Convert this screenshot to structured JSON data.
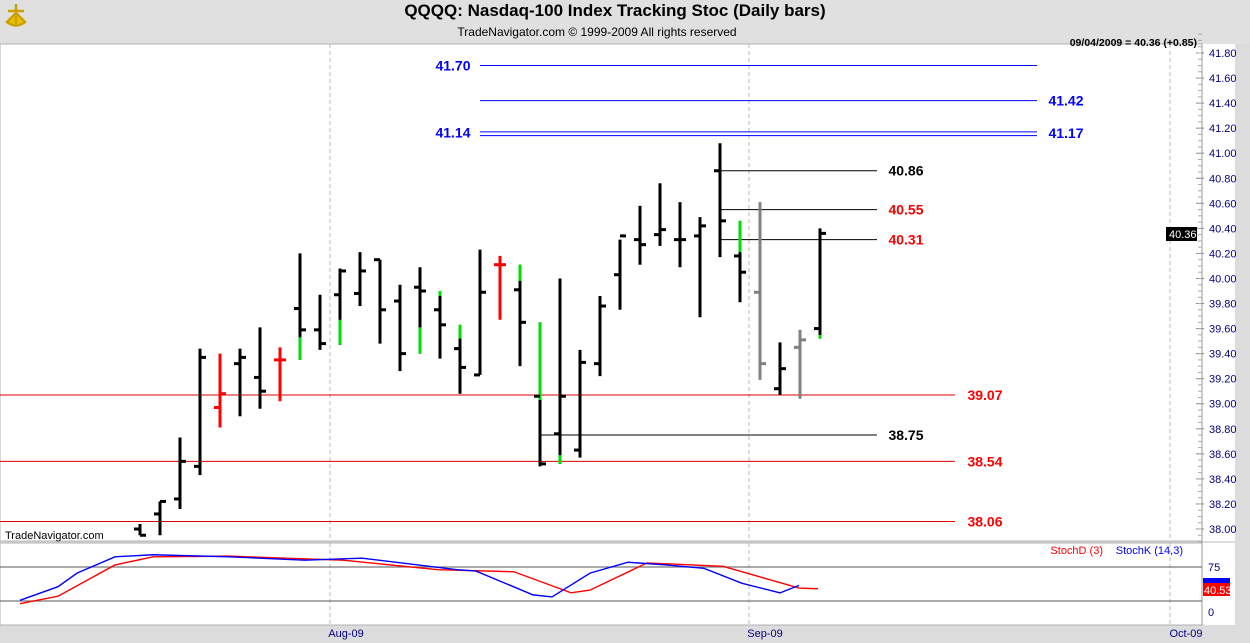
{
  "header": {
    "title": "QQQQ:  Nasdaq-100 Index Tracking Stoc  (Daily bars)",
    "subtitle": "TradeNavigator.com © 1999-2009 All rights reserved",
    "logo": "sextant-logo"
  },
  "watermark": "TradeNavigator.com",
  "readout": "09/04/2009 = 40.36 (+0.85)",
  "last_price_tag": "40.36",
  "colors": {
    "up": "#000000",
    "down_red": "#ff0000",
    "gray": "#808080",
    "green": "#00dd00",
    "blue_level": "#0000ff",
    "stochK": "#0000ff",
    "stochD": "#ff0000"
  },
  "chart_data": [
    {
      "type": "ohlc",
      "title": "QQQQ:  Nasdaq-100 Index Tracking Stoc  (Daily bars)",
      "ylim": [
        37.9,
        41.95
      ],
      "yticks": [
        "38.00",
        "38.20",
        "38.40",
        "38.60",
        "38.80",
        "39.00",
        "39.20",
        "39.40",
        "39.60",
        "39.80",
        "40.00",
        "40.20",
        "40.40",
        "40.60",
        "40.80",
        "41.00",
        "41.20",
        "41.40",
        "41.60",
        "41.80"
      ],
      "xticks": [
        "Aug-09",
        "Sep-09",
        "Oct-09"
      ],
      "grid": "vertical dashed at month starts",
      "bars": [
        {
          "o": 38.0,
          "h": 38.04,
          "l": 37.95,
          "c": 37.95
        },
        {
          "o": 38.12,
          "h": 38.22,
          "l": 37.95,
          "c": 38.22
        },
        {
          "o": 38.24,
          "h": 38.73,
          "l": 38.16,
          "c": 38.54
        },
        {
          "o": 38.5,
          "h": 39.44,
          "l": 38.43,
          "c": 39.37
        },
        {
          "o": 38.97,
          "h": 39.4,
          "l": 38.81,
          "c": 39.08,
          "color": "red"
        },
        {
          "o": 39.32,
          "h": 39.44,
          "l": 38.9,
          "c": 39.37
        },
        {
          "o": 39.21,
          "h": 39.61,
          "l": 38.96,
          "c": 39.1
        },
        {
          "o": 39.35,
          "h": 39.45,
          "l": 39.02,
          "c": 39.35,
          "color": "red"
        },
        {
          "o": 39.76,
          "h": 40.2,
          "l": 39.35,
          "c": 39.59,
          "green": [
            39.53,
            39.35
          ]
        },
        {
          "o": 39.59,
          "h": 39.87,
          "l": 39.43,
          "c": 39.48
        },
        {
          "o": 39.87,
          "h": 40.08,
          "l": 39.47,
          "c": 40.06,
          "green": [
            39.67,
            39.47
          ]
        },
        {
          "o": 39.88,
          "h": 40.21,
          "l": 39.78,
          "c": 40.06
        },
        {
          "o": 40.15,
          "h": 40.15,
          "l": 39.48,
          "c": 39.75
        },
        {
          "o": 39.82,
          "h": 39.95,
          "l": 39.26,
          "c": 39.4
        },
        {
          "o": 39.93,
          "h": 40.09,
          "l": 39.4,
          "c": 39.9,
          "green": [
            39.61,
            39.4
          ]
        },
        {
          "o": 39.75,
          "h": 39.9,
          "l": 39.36,
          "c": 39.63,
          "green": [
            39.9,
            39.86
          ]
        },
        {
          "o": 39.44,
          "h": 39.63,
          "l": 39.08,
          "c": 39.29,
          "green": [
            39.63,
            39.52
          ]
        },
        {
          "o": 39.23,
          "h": 40.23,
          "l": 39.23,
          "c": 39.89
        },
        {
          "o": 40.11,
          "h": 40.18,
          "l": 39.67,
          "c": 40.11,
          "color": "red"
        },
        {
          "o": 39.91,
          "h": 40.11,
          "l": 39.3,
          "c": 39.65,
          "green": [
            40.11,
            39.98
          ]
        },
        {
          "o": 39.06,
          "h": 39.65,
          "l": 38.5,
          "c": 38.52,
          "green": [
            39.65,
            39.03
          ]
        },
        {
          "o": 38.76,
          "h": 40.0,
          "l": 38.52,
          "c": 39.06,
          "green": [
            38.59,
            38.52
          ]
        },
        {
          "o": 38.63,
          "h": 39.43,
          "l": 38.57,
          "c": 39.33
        },
        {
          "o": 39.32,
          "h": 39.86,
          "l": 39.22,
          "c": 39.78
        },
        {
          "o": 40.03,
          "h": 40.31,
          "l": 39.75,
          "c": 40.34
        },
        {
          "o": 40.31,
          "h": 40.58,
          "l": 40.11,
          "c": 40.27
        },
        {
          "o": 40.35,
          "h": 40.76,
          "l": 40.26,
          "c": 40.39
        },
        {
          "o": 40.31,
          "h": 40.61,
          "l": 40.09,
          "c": 40.31
        },
        {
          "o": 40.34,
          "h": 40.49,
          "l": 39.69,
          "c": 40.42
        },
        {
          "o": 40.86,
          "h": 41.08,
          "l": 40.17,
          "c": 40.46
        },
        {
          "o": 40.18,
          "h": 40.46,
          "l": 39.81,
          "c": 40.05,
          "green": [
            40.46,
            40.21
          ]
        },
        {
          "o": 39.89,
          "h": 40.61,
          "l": 39.19,
          "c": 39.32,
          "color": "gray"
        },
        {
          "o": 39.12,
          "h": 39.49,
          "l": 39.07,
          "c": 39.28
        },
        {
          "o": 39.45,
          "h": 39.59,
          "l": 39.04,
          "c": 39.51,
          "color": "gray"
        },
        {
          "o": 39.6,
          "h": 40.4,
          "l": 39.52,
          "c": 40.36,
          "green": [
            39.55,
            39.52
          ]
        }
      ],
      "levels": [
        {
          "value": 41.7,
          "label": "41.70",
          "color": "blue",
          "label_side": "left"
        },
        {
          "value": 41.42,
          "label": "41.42",
          "color": "blue",
          "label_side": "right"
        },
        {
          "value": 41.17,
          "label": "41.17",
          "color": "blue",
          "label_side": "right"
        },
        {
          "value": 41.14,
          "label": "41.14",
          "color": "blue",
          "label_side": "left"
        },
        {
          "value": 40.86,
          "label": "40.86",
          "color": "black",
          "label_side": "right"
        },
        {
          "value": 40.55,
          "label": "40.55",
          "color": "red",
          "label_side": "right"
        },
        {
          "value": 40.31,
          "label": "40.31",
          "color": "red",
          "label_side": "right"
        },
        {
          "value": 39.07,
          "label": "39.07",
          "color": "red",
          "label_side": "right"
        },
        {
          "value": 38.75,
          "label": "38.75",
          "color": "black",
          "label_side": "right"
        },
        {
          "value": 38.54,
          "label": "38.54",
          "color": "red",
          "label_side": "right"
        },
        {
          "value": 38.06,
          "label": "38.06",
          "color": "red",
          "label_side": "right"
        }
      ]
    },
    {
      "type": "line",
      "ylim": [
        0,
        100
      ],
      "yticks": [
        "75",
        "0"
      ],
      "reference_lines": [
        75,
        25
      ],
      "legend": "top-right",
      "last_value_tag": "40.53",
      "series": [
        {
          "name": "StochD (3)",
          "color": "#ff0000",
          "points": [
            [
              1,
              21
            ],
            [
              3,
              32
            ],
            [
              6,
              78
            ],
            [
              8,
              90
            ],
            [
              12,
              91
            ],
            [
              18,
              85
            ],
            [
              23,
              71
            ],
            [
              27,
              68
            ],
            [
              30,
              37
            ],
            [
              31,
              41
            ],
            [
              34,
              81
            ],
            [
              38,
              76
            ],
            [
              42,
              44
            ],
            [
              43,
              43
            ]
          ]
        },
        {
          "name": "StochK (14,3)",
          "color": "#0000ff",
          "points": [
            [
              1,
              26
            ],
            [
              3,
              46
            ],
            [
              4,
              66
            ],
            [
              6,
              90
            ],
            [
              8,
              93
            ],
            [
              12,
              90
            ],
            [
              16,
              85
            ],
            [
              18,
              87
            ],
            [
              19,
              88
            ],
            [
              24,
              71
            ],
            [
              25,
              69
            ],
            [
              28,
              34
            ],
            [
              29,
              31
            ],
            [
              31,
              66
            ],
            [
              33,
              82
            ],
            [
              35,
              78
            ],
            [
              37,
              73
            ],
            [
              39,
              51
            ],
            [
              41,
              37
            ],
            [
              42,
              48
            ]
          ]
        }
      ]
    }
  ]
}
